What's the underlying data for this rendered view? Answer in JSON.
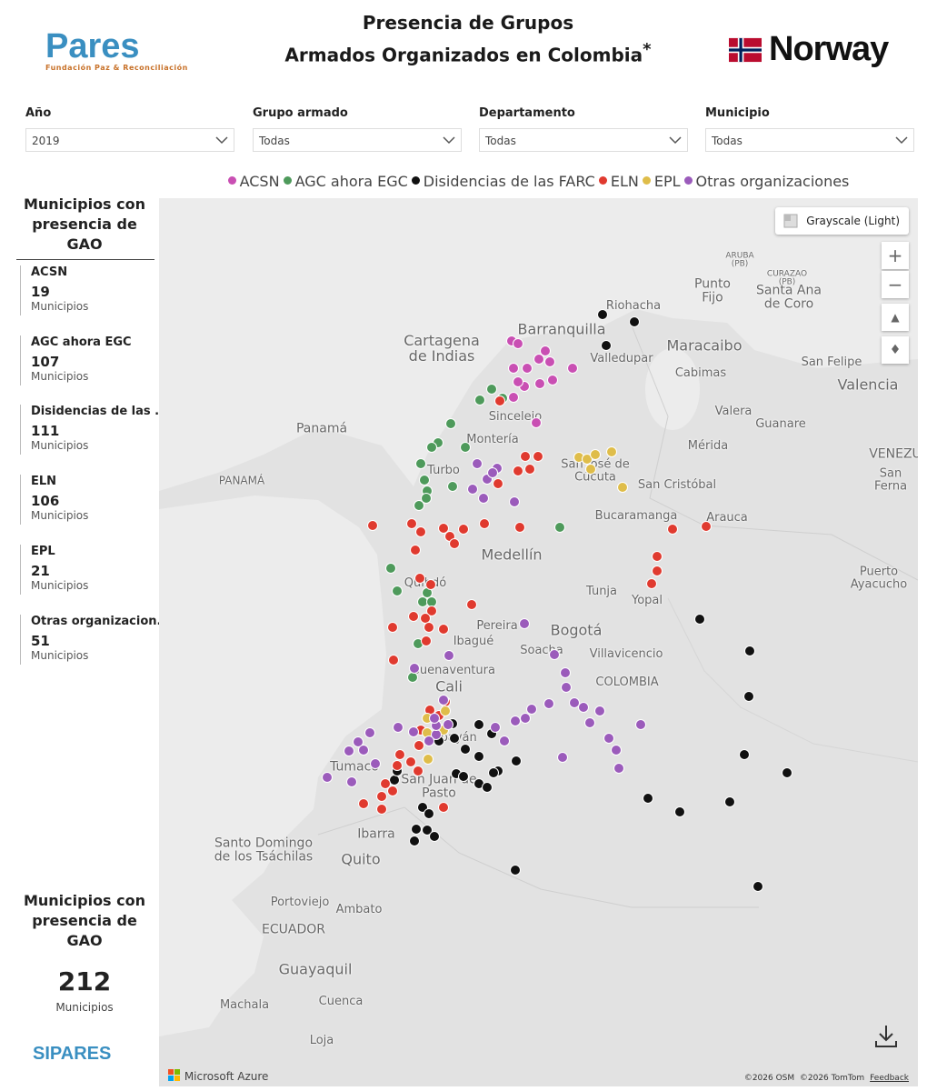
{
  "header": {
    "logo": "Pares",
    "logo_subtitle": "Fundación Paz & Reconciliación",
    "title_line1": "Presencia de Grupos",
    "title_line2": "Armados Organizados en Colombia",
    "title_mark": "*",
    "sponsor": "Norway"
  },
  "filters": [
    {
      "label": "Año",
      "value": "2019"
    },
    {
      "label": "Grupo armado",
      "value": "Todas"
    },
    {
      "label": "Departamento",
      "value": "Todas"
    },
    {
      "label": "Municipio",
      "value": "Todas"
    }
  ],
  "legend": [
    {
      "name": "ACSN",
      "color": "#c94fb3"
    },
    {
      "name": "AGC ahora EGC",
      "color": "#4e9a5b"
    },
    {
      "name": "Disidencias de las FARC",
      "color": "#111111"
    },
    {
      "name": "ELN",
      "color": "#e03a2f"
    },
    {
      "name": "EPL",
      "color": "#dfbd4a"
    },
    {
      "name": "Otras organizaciones",
      "color": "#9b5bbb"
    }
  ],
  "sidebar": {
    "heading": "Municipios con presencia de GAO",
    "cards": [
      {
        "name": "ACSN",
        "count": 19,
        "unit": "Municipios"
      },
      {
        "name": "AGC ahora EGC",
        "count": 107,
        "unit": "Municipios"
      },
      {
        "name": "Disidencias de las ...",
        "count": 111,
        "unit": "Municipios"
      },
      {
        "name": "ELN",
        "count": 106,
        "unit": "Municipios"
      },
      {
        "name": "EPL",
        "count": 21,
        "unit": "Municipios"
      },
      {
        "name": "Otras organizacion...",
        "count": 51,
        "unit": "Municipios"
      }
    ],
    "total_heading": "Municipios con presencia de GAO",
    "total": 212,
    "total_unit": "Municipios",
    "footer_logo": "SIPARES"
  },
  "map": {
    "style_button": "Grayscale (Light)",
    "labels": [
      "Riohacha",
      "Barranquilla",
      "Punto Fijo",
      "Santa Ana de Coro",
      "ARUBA (PB)",
      "CURAZAO (PB)",
      "Cartagena de Indias",
      "Maracaibo",
      "Valledupar",
      "Cabimas",
      "San Felipe",
      "Valencia",
      "Sincelejo",
      "Valera",
      "Guanare",
      "Panamá",
      "Montería",
      "Mérida",
      "PANAMÁ",
      "Turbo",
      "San José de Cúcuta",
      "San Cristóbal",
      "VENEZU",
      "San Ferna",
      "Bucaramanga",
      "Arauca",
      "Medellín",
      "Puerto Ayacucho",
      "Quibdó",
      "Tunja",
      "Yopal",
      "Pereira",
      "Bogotá",
      "Ibagué",
      "Soacha",
      "Villavicencio",
      "Buenaventura",
      "COLOMBIA",
      "Cali",
      "Popayán",
      "Tumaco",
      "San Juan de Pasto",
      "Santo Domingo de los Tsáchilas",
      "Ibarra",
      "Quito",
      "Portoviejo",
      "Ambato",
      "ECUADOR",
      "Guayaquil",
      "Cuenca",
      "Machala",
      "Loja"
    ],
    "attribution": "Microsoft Azure",
    "copyright": "©2026 OSM  ©2026 TomTom",
    "feedback": "Feedback"
  }
}
